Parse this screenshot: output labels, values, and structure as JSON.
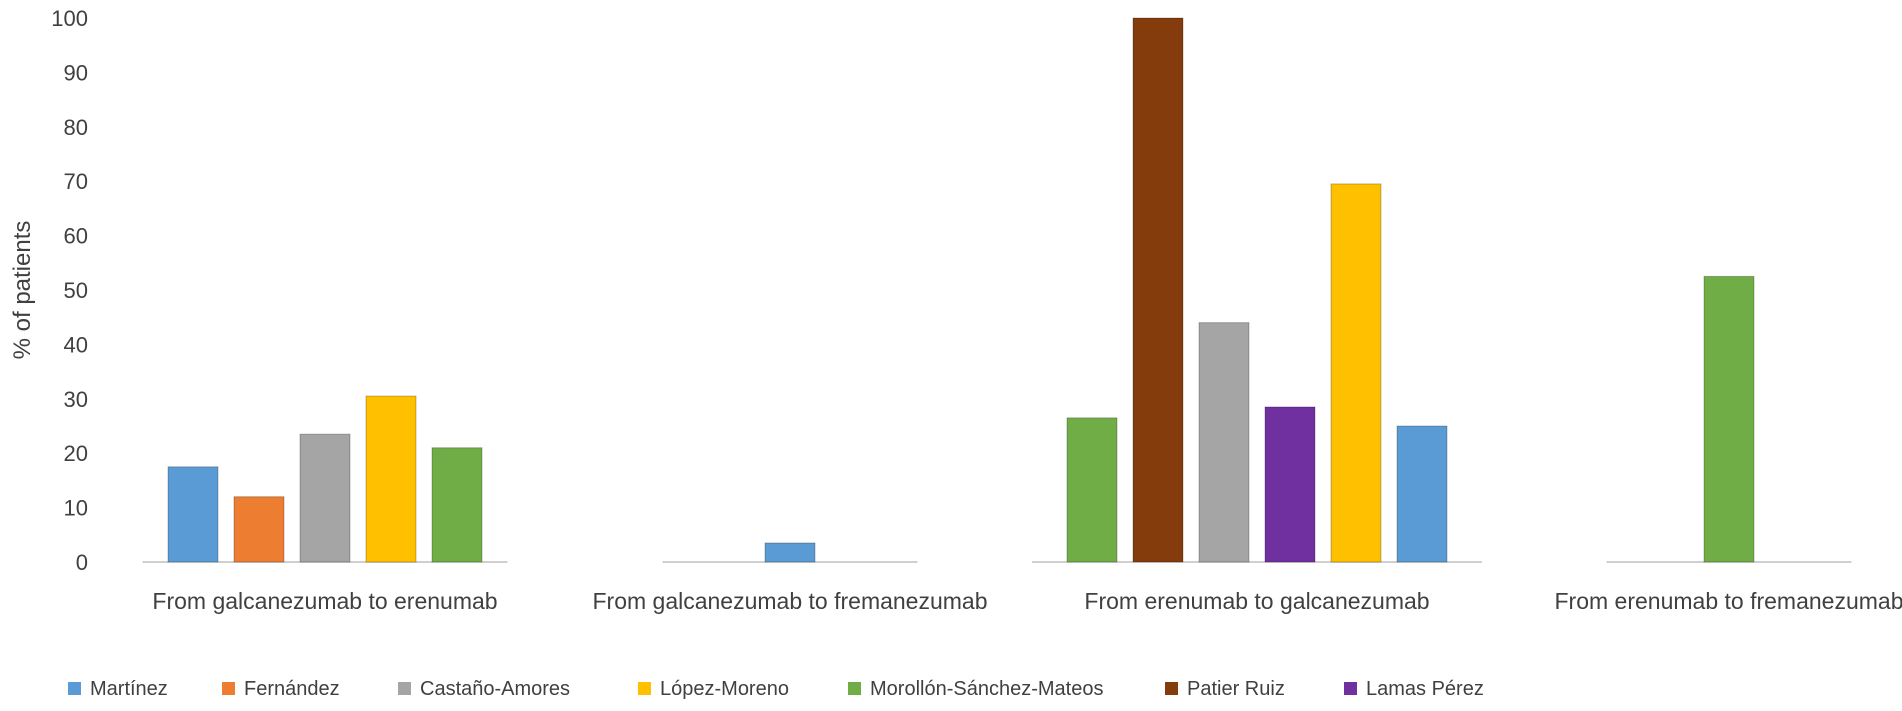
{
  "chart_data": {
    "type": "bar",
    "ylabel": "% of patients",
    "xlabel": "",
    "ylim": [
      0,
      100
    ],
    "yticks": [
      "0",
      "10",
      "20",
      "30",
      "40",
      "50",
      "60",
      "70",
      "80",
      "90",
      "100"
    ],
    "grid": false,
    "legend_position": "bottom",
    "categories": [
      "From galcanezumab to erenumab",
      "From galcanezumab to fremanezumab",
      "From erenumab to galcanezumab",
      "From erenumab to fremanezumab"
    ],
    "series": [
      {
        "name": "Martínez",
        "color": "#5B9BD5",
        "values": [
          17.5,
          3.5,
          25,
          null
        ]
      },
      {
        "name": "Fernández",
        "color": "#ED7D31",
        "values": [
          12,
          null,
          null,
          null
        ]
      },
      {
        "name": "Castaño-Amores",
        "color": "#A5A5A5",
        "values": [
          23.5,
          null,
          44,
          null
        ]
      },
      {
        "name": "López-Moreno",
        "color": "#FFC000",
        "values": [
          30.5,
          null,
          69.5,
          null
        ]
      },
      {
        "name": "Morollón-Sánchez-Mateos",
        "color": "#70AD47",
        "values": [
          21,
          null,
          26.5,
          52.5
        ]
      },
      {
        "name": "Patier Ruiz",
        "color": "#843C0C",
        "values": [
          null,
          null,
          100,
          null
        ]
      },
      {
        "name": "Lamas Pérez",
        "color": "#7030A0",
        "values": [
          null,
          null,
          28.5,
          null
        ]
      }
    ],
    "bar_order": [
      [
        "Martínez",
        "Fernández",
        "Castaño-Amores",
        "López-Moreno",
        "Morollón-Sánchez-Mateos"
      ],
      [
        "Martínez"
      ],
      [
        "Morollón-Sánchez-Mateos",
        "Patier Ruiz",
        "Castaño-Amores",
        "Lamas Pérez",
        "López-Moreno",
        "Martínez"
      ],
      [
        "Morollón-Sánchez-Mateos"
      ]
    ]
  }
}
